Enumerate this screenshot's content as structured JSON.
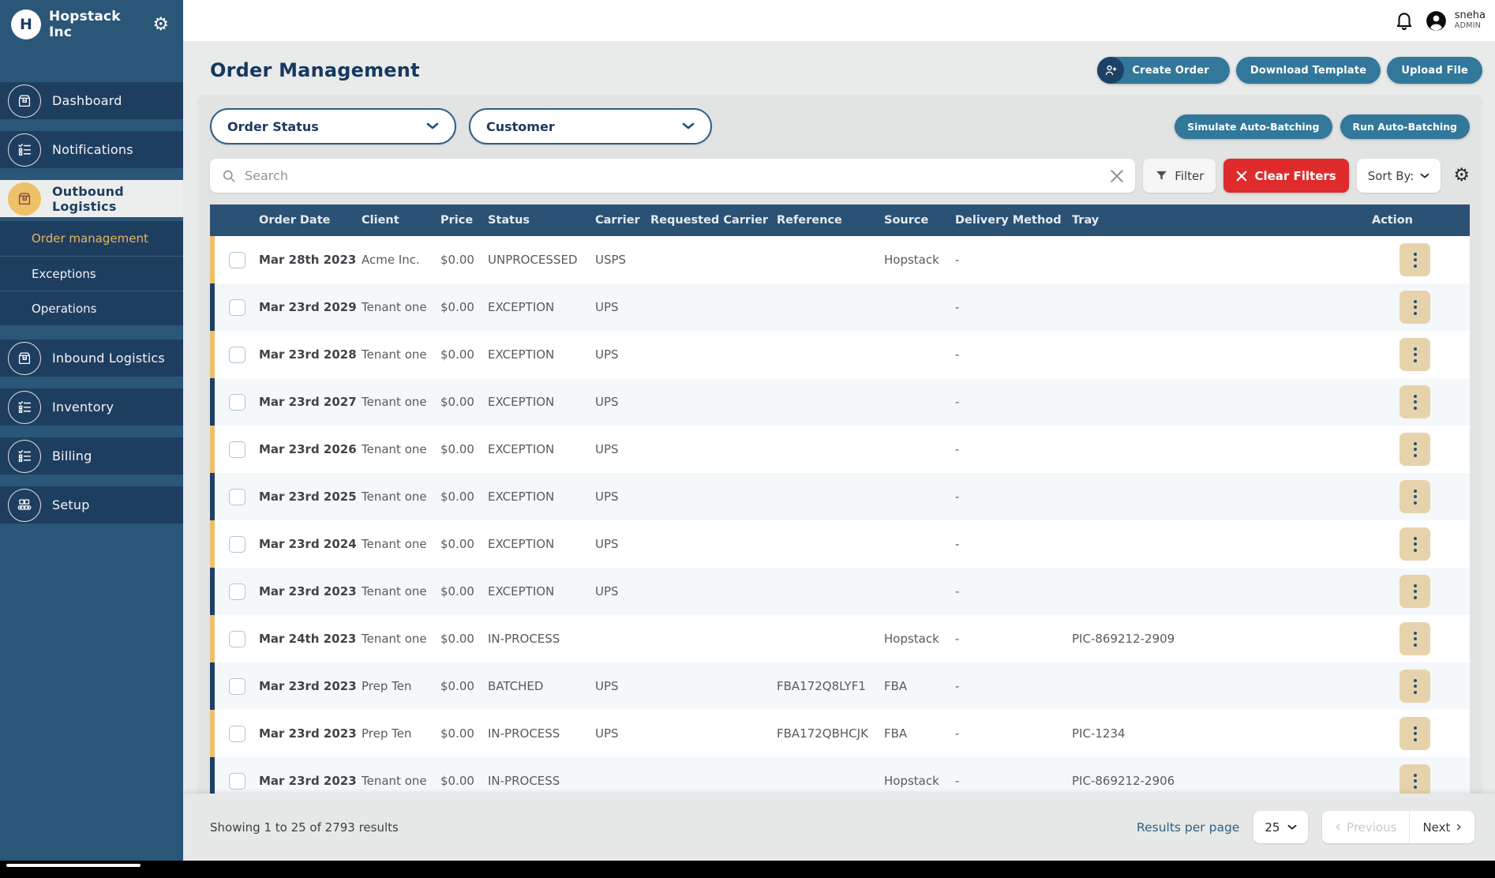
{
  "colors": {
    "navy": "#16395e",
    "sidebar-base": "#2a5678",
    "sidebar-item": "#1e3e60",
    "teal": "#31789a",
    "amber": "#eec068",
    "red": "#df2b2b",
    "header-navy": "#2b5174",
    "tan": "#e7d3ab"
  },
  "sidebar": {
    "brand": "Hopstack Inc",
    "items": [
      {
        "label": "Dashboard",
        "icon": "package-icon",
        "selected": false
      },
      {
        "label": "Notifications",
        "icon": "checklist-icon",
        "selected": false
      },
      {
        "label": "Outbound Logistics",
        "icon": "package-icon",
        "selected": true,
        "children": [
          {
            "label": "Order management",
            "active": true
          },
          {
            "label": "Exceptions",
            "active": false
          },
          {
            "label": "Operations",
            "active": false
          }
        ]
      },
      {
        "label": "Inbound Logistics",
        "icon": "package-icon",
        "selected": false
      },
      {
        "label": "Inventory",
        "icon": "checklist-icon",
        "selected": false
      },
      {
        "label": "Billing",
        "icon": "checklist-icon",
        "selected": false
      },
      {
        "label": "Setup",
        "icon": "conveyor-icon",
        "selected": false
      }
    ]
  },
  "topbar": {
    "user": {
      "name": "sneha",
      "role": "ADMIN"
    }
  },
  "header": {
    "title": "Order Management",
    "create_order": "Create Order",
    "download_template": "Download Template",
    "upload_file": "Upload File"
  },
  "filters": {
    "order_status_label": "Order Status",
    "customer_label": "Customer",
    "simulate_button": "Simulate Auto-Batching",
    "run_button": "Run Auto-Batching",
    "search_placeholder": "Search",
    "filter_button": "Filter",
    "clear_filters_button": "Clear Filters",
    "sort_by_label": "Sort By:"
  },
  "table": {
    "columns": [
      "Order Date",
      "Client",
      "Price",
      "Status",
      "Carrier",
      "Requested Carrier",
      "Reference",
      "Source",
      "Delivery Method",
      "Tray",
      "Action"
    ],
    "rows": [
      {
        "stripe": "amber",
        "order_date": "Mar 28th 2023",
        "client": "Acme Inc.",
        "price": "$0.00",
        "status": "UNPROCESSED",
        "carrier": "USPS",
        "requested_carrier": "",
        "reference": "",
        "source": "Hopstack",
        "delivery_method": "-",
        "tray": ""
      },
      {
        "stripe": "navy",
        "order_date": "Mar 23rd 2029",
        "client": "Tenant one",
        "price": "$0.00",
        "status": "EXCEPTION",
        "carrier": "UPS",
        "requested_carrier": "",
        "reference": "",
        "source": "",
        "delivery_method": "-",
        "tray": ""
      },
      {
        "stripe": "amber",
        "order_date": "Mar 23rd 2028",
        "client": "Tenant one",
        "price": "$0.00",
        "status": "EXCEPTION",
        "carrier": "UPS",
        "requested_carrier": "",
        "reference": "",
        "source": "",
        "delivery_method": "-",
        "tray": ""
      },
      {
        "stripe": "navy",
        "order_date": "Mar 23rd 2027",
        "client": "Tenant one",
        "price": "$0.00",
        "status": "EXCEPTION",
        "carrier": "UPS",
        "requested_carrier": "",
        "reference": "",
        "source": "",
        "delivery_method": "-",
        "tray": ""
      },
      {
        "stripe": "amber",
        "order_date": "Mar 23rd 2026",
        "client": "Tenant one",
        "price": "$0.00",
        "status": "EXCEPTION",
        "carrier": "UPS",
        "requested_carrier": "",
        "reference": "",
        "source": "",
        "delivery_method": "-",
        "tray": ""
      },
      {
        "stripe": "navy",
        "order_date": "Mar 23rd 2025",
        "client": "Tenant one",
        "price": "$0.00",
        "status": "EXCEPTION",
        "carrier": "UPS",
        "requested_carrier": "",
        "reference": "",
        "source": "",
        "delivery_method": "-",
        "tray": ""
      },
      {
        "stripe": "amber",
        "order_date": "Mar 23rd 2024",
        "client": "Tenant one",
        "price": "$0.00",
        "status": "EXCEPTION",
        "carrier": "UPS",
        "requested_carrier": "",
        "reference": "",
        "source": "",
        "delivery_method": "-",
        "tray": ""
      },
      {
        "stripe": "navy",
        "order_date": "Mar 23rd 2023",
        "client": "Tenant one",
        "price": "$0.00",
        "status": "EXCEPTION",
        "carrier": "UPS",
        "requested_carrier": "",
        "reference": "",
        "source": "",
        "delivery_method": "-",
        "tray": ""
      },
      {
        "stripe": "amber",
        "order_date": "Mar 24th 2023",
        "client": "Tenant one",
        "price": "$0.00",
        "status": "IN-PROCESS",
        "carrier": "",
        "requested_carrier": "",
        "reference": "",
        "source": "Hopstack",
        "delivery_method": "-",
        "tray": "PIC-869212-2909"
      },
      {
        "stripe": "navy",
        "order_date": "Mar 23rd 2023",
        "client": "Prep Ten",
        "price": "$0.00",
        "status": "BATCHED",
        "carrier": "UPS",
        "requested_carrier": "",
        "reference": "FBA172Q8LYF1",
        "source": "FBA",
        "delivery_method": "-",
        "tray": ""
      },
      {
        "stripe": "amber",
        "order_date": "Mar 23rd 2023",
        "client": "Prep Ten",
        "price": "$0.00",
        "status": "IN-PROCESS",
        "carrier": "UPS",
        "requested_carrier": "",
        "reference": "FBA172QBHCJK",
        "source": "FBA",
        "delivery_method": "-",
        "tray": "PIC-1234"
      },
      {
        "stripe": "navy",
        "order_date": "Mar 23rd 2023",
        "client": "Tenant one",
        "price": "$0.00",
        "status": "IN-PROCESS",
        "carrier": "",
        "requested_carrier": "",
        "reference": "",
        "source": "Hopstack",
        "delivery_method": "-",
        "tray": "PIC-869212-2906"
      }
    ]
  },
  "pagination": {
    "summary": "Showing 1 to 25 of 2793 results",
    "results_per_page_label": "Results per page",
    "page_size": "25",
    "previous_label": "Previous",
    "next_label": "Next"
  }
}
